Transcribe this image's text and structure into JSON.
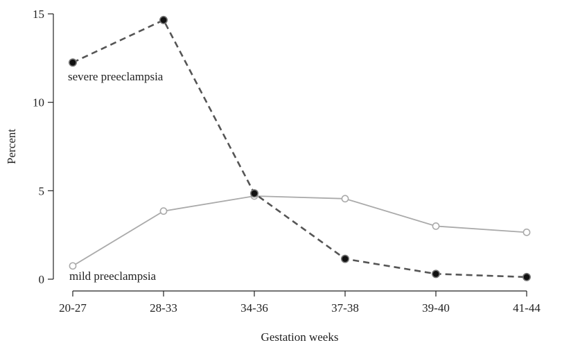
{
  "chart_data": {
    "type": "line",
    "title": "",
    "xlabel": "Gestation weeks",
    "ylabel": "Percent",
    "categories": [
      "20-27",
      "28-33",
      "34-36",
      "37-38",
      "39-40",
      "41-44"
    ],
    "y_ticks": [
      0,
      5,
      10,
      15
    ],
    "ylim": [
      0,
      15
    ],
    "grid": false,
    "legend": "none",
    "series": [
      {
        "name": "severe preeclampsia",
        "values": [
          12.25,
          14.65,
          4.85,
          1.15,
          0.3,
          0.12
        ],
        "color": "#555555",
        "marker_fill": "#333333",
        "dashed": true
      },
      {
        "name": "mild preeclampsia",
        "values": [
          0.75,
          3.85,
          4.7,
          4.55,
          3.0,
          2.65
        ],
        "color": "#aaaaaa",
        "marker_fill": "#ffffff",
        "dashed": false
      }
    ]
  }
}
